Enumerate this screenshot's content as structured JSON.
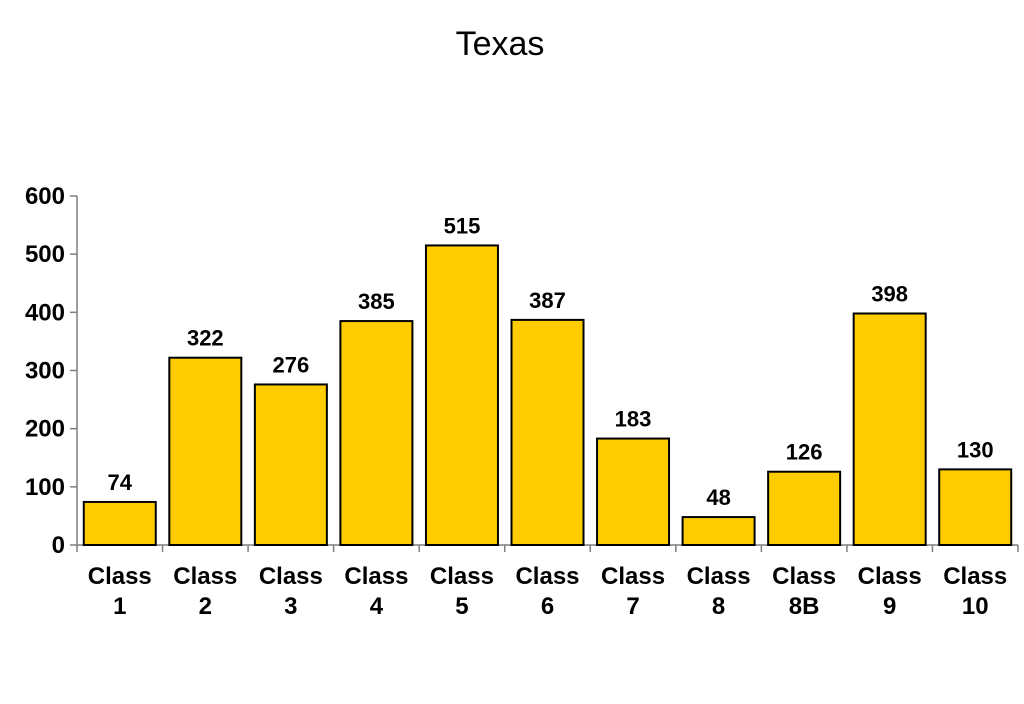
{
  "chart_data": {
    "type": "bar",
    "title": "Texas",
    "xlabel": "",
    "ylabel": "",
    "categories": [
      [
        "Class",
        "1"
      ],
      [
        "Class",
        "2"
      ],
      [
        "Class",
        "3"
      ],
      [
        "Class",
        "4"
      ],
      [
        "Class",
        "5"
      ],
      [
        "Class",
        "6"
      ],
      [
        "Class",
        "7"
      ],
      [
        "Class",
        "8"
      ],
      [
        "Class",
        "8B"
      ],
      [
        "Class",
        "9"
      ],
      [
        "Class",
        "10"
      ]
    ],
    "values": [
      74,
      322,
      276,
      385,
      515,
      387,
      183,
      48,
      126,
      398,
      130
    ],
    "ylim": [
      0,
      600
    ],
    "yticks": [
      0,
      100,
      200,
      300,
      400,
      500,
      600
    ],
    "grid": false,
    "legend": "none",
    "bar_color": "#ffcc00",
    "bar_outline": "#000000"
  }
}
